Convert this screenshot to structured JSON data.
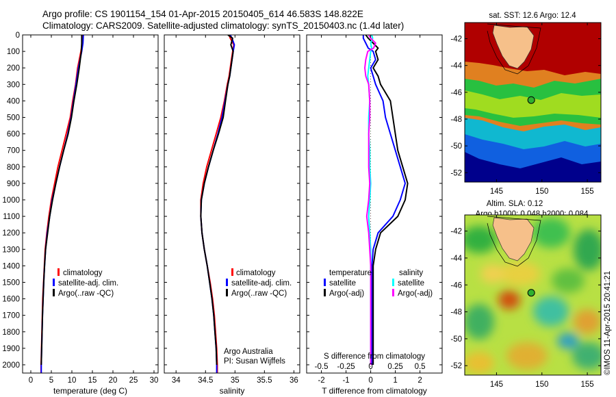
{
  "header": {
    "line1": "Argo profile: CS 1901154_154 01-Apr-2015 20150405_614 46.583S 148.822E",
    "line2": "Climatology: CARS2009. Satellite-adjusted climatology: synTS_20150403.nc (1.4d later)"
  },
  "depth_axis": {
    "ticks": [
      "0",
      "100",
      "200",
      "300",
      "400",
      "500",
      "600",
      "700",
      "800",
      "900",
      "1000",
      "1100",
      "1200",
      "1300",
      "1400",
      "1500",
      "1600",
      "1700",
      "1800",
      "1900",
      "2000"
    ],
    "range": [
      0,
      2050
    ]
  },
  "colors": {
    "climatology": "#ff0000",
    "satellite": "#0000ff",
    "argo": "#000000",
    "sal_satellite": "#00ffff",
    "sal_argo": "#ff00ff"
  },
  "legend_tp": {
    "items": [
      "climatology",
      "satellite-adj. clim.",
      "Argo(..raw -QC)"
    ]
  },
  "legend_diff": {
    "temp_title": "temperature",
    "sal_title": "salinity",
    "items": [
      "satellite",
      "Argo(-adj)",
      "satellite",
      "Argo(-adj)"
    ]
  },
  "credit": {
    "line1": "Argo Australia",
    "line2": "PI: Susan Wijffels"
  },
  "chart_data": [
    {
      "type": "line",
      "xlabel": "temperature (deg C)",
      "ylabel": "",
      "xlim": [
        -2,
        31
      ],
      "ylim": [
        2050,
        0
      ],
      "xticks": [
        "0",
        "5",
        "10",
        "15",
        "20",
        "25",
        "30"
      ],
      "x_axis_values": [
        0,
        5,
        10,
        15,
        20,
        25,
        30
      ],
      "depth": [
        0,
        50,
        100,
        200,
        300,
        400,
        500,
        600,
        700,
        800,
        900,
        1000,
        1100,
        1200,
        1300,
        1400,
        1500,
        1600,
        1700,
        1800,
        1900,
        2000,
        2050
      ],
      "series": [
        {
          "name": "climatology",
          "values": [
            12.6,
            12.5,
            12.2,
            11.4,
            10.9,
            10.2,
            9.6,
            8.6,
            7.6,
            6.6,
            5.8,
            5.0,
            4.4,
            3.9,
            3.5,
            3.3,
            3.1,
            2.9,
            2.8,
            2.7,
            2.6,
            2.5,
            2.5
          ]
        },
        {
          "name": "satellite-adj. clim.",
          "values": [
            12.8,
            12.7,
            12.4,
            11.6,
            11.0,
            10.4,
            9.8,
            9.0,
            8.0,
            7.0,
            6.1,
            5.2,
            4.6,
            4.0,
            3.6,
            3.35,
            3.15,
            3.0,
            2.85,
            2.75,
            2.65,
            2.55,
            2.55
          ]
        },
        {
          "name": "Argo(..raw -QC)",
          "values": [
            12.4,
            12.4,
            12.3,
            11.8,
            11.2,
            10.5,
            9.9,
            9.1,
            8.0,
            7.0,
            6.1,
            5.3,
            4.6,
            4.1,
            3.6,
            3.35,
            3.15,
            3.0,
            2.85,
            2.75,
            2.65,
            2.55,
            null
          ]
        }
      ]
    },
    {
      "type": "line",
      "xlabel": "salinity",
      "ylabel": "",
      "xlim": [
        33.8,
        36.1
      ],
      "ylim": [
        2050,
        0
      ],
      "xticks": [
        "34",
        "34.5",
        "35",
        "35.5",
        "36"
      ],
      "x_axis_values": [
        34,
        34.5,
        35,
        35.5,
        36
      ],
      "depth": [
        0,
        20,
        60,
        100,
        150,
        200,
        250,
        300,
        400,
        500,
        600,
        700,
        800,
        900,
        1000,
        1100,
        1200,
        1300,
        1400,
        1500,
        1600,
        1700,
        1800,
        1900,
        2000,
        2050
      ],
      "series": [
        {
          "name": "climatology",
          "values": [
            34.9,
            34.92,
            34.98,
            34.96,
            34.94,
            34.92,
            34.9,
            34.87,
            34.82,
            34.76,
            34.68,
            34.6,
            34.52,
            34.46,
            34.42,
            34.42,
            34.44,
            34.48,
            34.53,
            34.58,
            34.62,
            34.65,
            34.67,
            34.69,
            34.7,
            34.7
          ]
        },
        {
          "name": "satellite-adj. clim.",
          "values": [
            34.92,
            34.95,
            34.99,
            34.97,
            34.95,
            34.93,
            34.91,
            34.88,
            34.83,
            34.78,
            34.71,
            34.63,
            34.55,
            34.48,
            34.43,
            34.42,
            34.44,
            34.48,
            34.53,
            34.57,
            34.61,
            34.64,
            34.66,
            34.68,
            34.69,
            34.69
          ]
        },
        {
          "name": "Argo(..raw -QC)",
          "values": [
            34.88,
            34.96,
            34.93,
            34.97,
            34.95,
            34.93,
            34.91,
            34.88,
            34.84,
            34.8,
            34.72,
            34.63,
            34.55,
            34.48,
            34.43,
            34.42,
            34.44,
            34.48,
            34.53,
            34.57,
            34.61,
            34.64,
            34.66,
            34.68,
            34.69,
            null
          ]
        }
      ]
    },
    {
      "type": "line",
      "xlabel": "T difference from climatology",
      "ylabel": "",
      "top_label": "S difference from climatology",
      "xlim": [
        -2.6,
        2.9
      ],
      "ylim": [
        2050,
        0
      ],
      "xticks": [
        "-2",
        "-1",
        "0",
        "1",
        "2"
      ],
      "x_axis_values": [
        -2,
        -1,
        0,
        1,
        2
      ],
      "s_xticks": [
        "-0.5",
        "-0.25",
        "0",
        "0.25",
        "0.5"
      ],
      "s_axis_values": [
        -0.5,
        -0.25,
        0,
        0.25,
        0.5
      ],
      "depth": [
        0,
        20,
        50,
        80,
        100,
        150,
        200,
        250,
        300,
        400,
        500,
        600,
        700,
        800,
        900,
        1000,
        1100,
        1200,
        1300,
        1400,
        1500,
        1600,
        1700,
        1800,
        1900,
        2000
      ],
      "series": [
        {
          "name": "T satellite",
          "values": [
            -0.3,
            -0.3,
            -0.2,
            -0.1,
            0.1,
            0.2,
            0.0,
            0.1,
            0.2,
            0.5,
            0.6,
            0.8,
            1.0,
            1.2,
            1.4,
            1.2,
            0.9,
            0.3,
            0.1,
            0.05,
            0.05,
            0.05,
            0.05,
            0.05,
            0.05,
            0.05
          ]
        },
        {
          "name": "T Argo(-adj)",
          "values": [
            -0.2,
            -0.1,
            0.1,
            0.3,
            0.2,
            0.3,
            0.1,
            0.3,
            0.4,
            0.8,
            0.9,
            1.0,
            1.1,
            1.3,
            1.5,
            1.4,
            1.1,
            0.4,
            0.2,
            0.1,
            0.1,
            0.1,
            0.1,
            0.1,
            0.1,
            0.1
          ]
        },
        {
          "name": "S satellite",
          "values": [
            0.01,
            0.02,
            0.0,
            0.01,
            0.0,
            -0.01,
            -0.02,
            -0.03,
            -0.02,
            -0.01,
            -0.02,
            -0.02,
            -0.01,
            -0.01,
            0.0,
            -0.01,
            -0.02,
            -0.01,
            0.0,
            0.0,
            0.0,
            0.0,
            0.0,
            0.0,
            0.0,
            0.0
          ]
        },
        {
          "name": "S Argo(-adj)",
          "values": [
            -0.02,
            0.0,
            0.05,
            0.03,
            -0.03,
            -0.05,
            -0.06,
            -0.05,
            -0.02,
            -0.01,
            -0.01,
            -0.02,
            -0.02,
            -0.02,
            -0.01,
            -0.02,
            -0.04,
            -0.02,
            -0.01,
            0.0,
            0.0,
            0.0,
            0.0,
            0.0,
            0.0,
            0.0
          ]
        }
      ]
    },
    {
      "type": "heatmap",
      "title": "sat. SST: 12.6 Argo: 12.4",
      "xlim": [
        141.5,
        156.5
      ],
      "ylim": [
        -52.7,
        -40.8
      ],
      "xticks": [
        "145",
        "150",
        "155"
      ],
      "yticks": [
        "-42",
        "-44",
        "-46",
        "-48",
        "-50",
        "-52"
      ],
      "x_axis_values": [
        145,
        150,
        155
      ],
      "y_axis_values": [
        -42,
        -44,
        -46,
        -48,
        -50,
        -52
      ],
      "float_position": {
        "lon": 148.822,
        "lat": -46.583
      }
    },
    {
      "type": "heatmap",
      "title": "Altim. SLA: 0.12",
      "subtitle": "Argo h1000: 0.048 h2000: 0.084",
      "xlim": [
        141.5,
        156.5
      ],
      "ylim": [
        -52.7,
        -40.8
      ],
      "xticks": [
        "145",
        "150",
        "155"
      ],
      "yticks": [
        "-42",
        "-44",
        "-46",
        "-48",
        "-50",
        "-52"
      ],
      "x_axis_values": [
        145,
        150,
        155
      ],
      "y_axis_values": [
        -42,
        -44,
        -46,
        -48,
        -50,
        -52
      ],
      "float_position": {
        "lon": 148.822,
        "lat": -46.583
      }
    }
  ],
  "watermark": "©IMOS 11-Apr-2015 20:41:21"
}
